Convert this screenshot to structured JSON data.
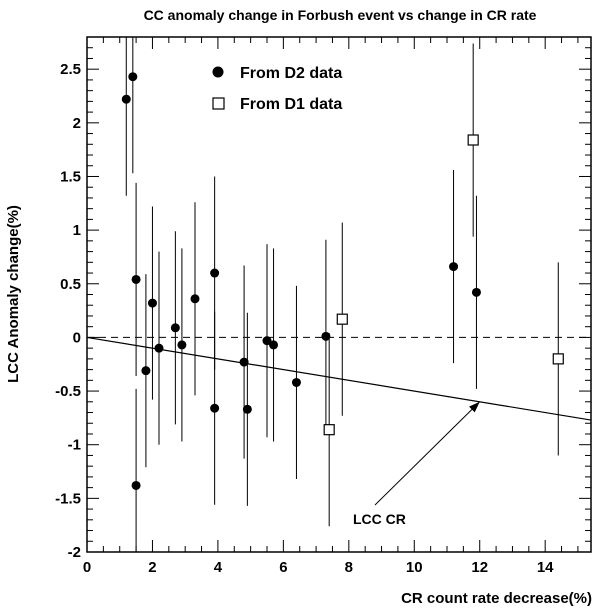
{
  "chart_data": {
    "type": "scatter",
    "title": "CC anomaly change in Forbush event vs change in CR rate",
    "xlabel": "CR count rate decrease(%)",
    "ylabel": "LCC Anomaly change(%)",
    "xlim": [
      0,
      15.4
    ],
    "ylim": [
      -2,
      2.8
    ],
    "xticks": [
      0,
      2,
      4,
      6,
      8,
      10,
      12,
      14
    ],
    "xtick_labels": [
      "0",
      "2",
      "4",
      "6",
      "8",
      "10",
      "12",
      "14"
    ],
    "yticks": [
      -2,
      -1.5,
      -1,
      -0.5,
      0,
      0.5,
      1,
      1.5,
      2,
      2.5
    ],
    "ytick_labels": [
      "-2",
      "-1.5",
      "-1",
      "-0.5",
      "0",
      "0.5",
      "1",
      "1.5",
      "2",
      "2.5"
    ],
    "grid": false,
    "legend_position": "top-left",
    "series": [
      {
        "name": "From D2 data",
        "marker": "filled-circle",
        "points": [
          {
            "x": 1.2,
            "y": 2.22,
            "err": 0.9
          },
          {
            "x": 1.4,
            "y": 2.43,
            "err": 0.9
          },
          {
            "x": 1.5,
            "y": 0.54,
            "err": 0.9
          },
          {
            "x": 1.5,
            "y": -1.38,
            "err": 0.9
          },
          {
            "x": 1.8,
            "y": -0.31,
            "err": 0.9
          },
          {
            "x": 2.0,
            "y": 0.32,
            "err": 0.9
          },
          {
            "x": 2.2,
            "y": -0.1,
            "err": 0.9
          },
          {
            "x": 2.7,
            "y": 0.09,
            "err": 0.9
          },
          {
            "x": 2.9,
            "y": -0.07,
            "err": 0.9
          },
          {
            "x": 3.3,
            "y": 0.36,
            "err": 0.9
          },
          {
            "x": 3.9,
            "y": 0.6,
            "err": 0.9
          },
          {
            "x": 3.9,
            "y": -0.66,
            "err": 0.9
          },
          {
            "x": 4.8,
            "y": -0.23,
            "err": 0.9
          },
          {
            "x": 4.9,
            "y": -0.67,
            "err": 0.9
          },
          {
            "x": 5.5,
            "y": -0.03,
            "err": 0.9
          },
          {
            "x": 5.7,
            "y": -0.07,
            "err": 0.9
          },
          {
            "x": 6.4,
            "y": -0.42,
            "err": 0.9
          },
          {
            "x": 7.3,
            "y": 0.01,
            "err": 0.9
          },
          {
            "x": 11.2,
            "y": 0.66,
            "err": 0.9
          },
          {
            "x": 11.9,
            "y": 0.42,
            "err": 0.9
          }
        ]
      },
      {
        "name": "From D1 data",
        "marker": "open-square",
        "points": [
          {
            "x": 7.4,
            "y": -0.86,
            "err": 0.9
          },
          {
            "x": 7.8,
            "y": 0.17,
            "err": 0.9
          },
          {
            "x": 11.8,
            "y": 1.84,
            "err": 0.9
          },
          {
            "x": 14.4,
            "y": -0.2,
            "err": 0.9
          }
        ]
      }
    ],
    "reference_line": {
      "y": 0,
      "style": "dashed"
    },
    "fit_line": {
      "label": "LCC CR",
      "x": [
        0,
        15.4
      ],
      "y": [
        0,
        -0.77
      ]
    },
    "annotation": {
      "text": "LCC CR",
      "points_to": {
        "x": 12.0,
        "y": -0.6
      }
    }
  }
}
